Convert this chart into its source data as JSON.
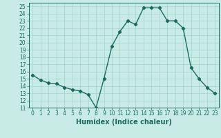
{
  "x": [
    0,
    1,
    2,
    3,
    4,
    5,
    6,
    7,
    8,
    9,
    10,
    11,
    12,
    13,
    14,
    15,
    16,
    17,
    18,
    19,
    20,
    21,
    22,
    23
  ],
  "y": [
    15.5,
    14.8,
    14.4,
    14.3,
    13.8,
    13.5,
    13.3,
    12.8,
    11.0,
    15.0,
    19.5,
    21.5,
    23.0,
    22.5,
    24.8,
    24.8,
    24.8,
    23.0,
    23.0,
    22.0,
    16.5,
    15.0,
    13.8,
    13.0
  ],
  "line_color": "#1a6b5e",
  "marker": "D",
  "marker_size": 2.2,
  "bg_color": "#c8ebe6",
  "grid_color": "#a0d5ce",
  "xlabel": "Humidex (Indice chaleur)",
  "xlim": [
    -0.5,
    23.5
  ],
  "ylim": [
    11,
    25.5
  ],
  "yticks": [
    11,
    12,
    13,
    14,
    15,
    16,
    17,
    18,
    19,
    20,
    21,
    22,
    23,
    24,
    25
  ],
  "xticks": [
    0,
    1,
    2,
    3,
    4,
    5,
    6,
    7,
    8,
    9,
    10,
    11,
    12,
    13,
    14,
    15,
    16,
    17,
    18,
    19,
    20,
    21,
    22,
    23
  ],
  "tick_fontsize": 5.5,
  "xlabel_fontsize": 7.0,
  "line_width": 1.0
}
